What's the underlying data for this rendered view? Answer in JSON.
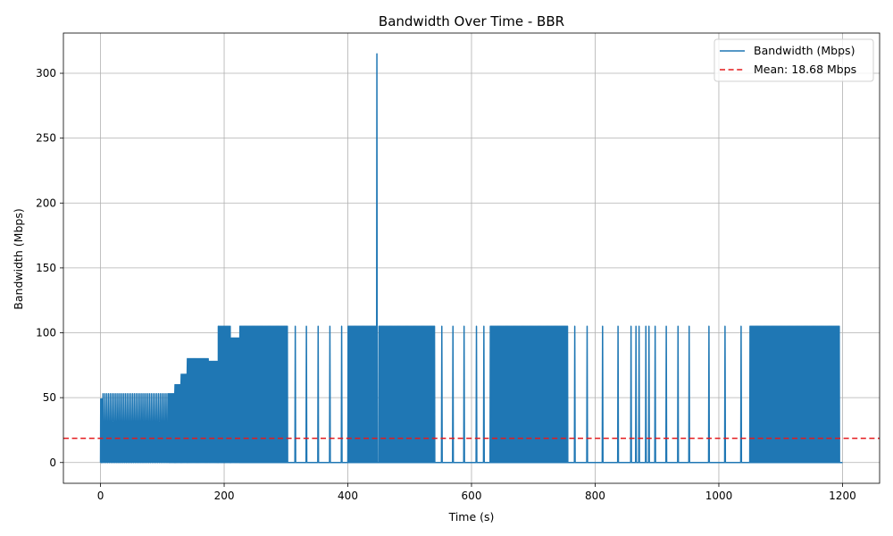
{
  "chart_data": {
    "type": "line",
    "title": "Bandwidth Over Time - BBR",
    "xlabel": "Time (s)",
    "ylabel": "Bandwidth (Mbps)",
    "xlim": [
      -60,
      1260
    ],
    "ylim": [
      -16,
      331
    ],
    "xticks": [
      0,
      200,
      400,
      600,
      800,
      1000,
      1200
    ],
    "yticks": [
      0,
      50,
      100,
      150,
      200,
      250,
      300
    ],
    "grid": true,
    "legend_position": "upper right",
    "colors": {
      "series": "#1f77b4",
      "mean": "#e41a1c"
    },
    "series": [
      {
        "name": "Bandwidth (Mbps)",
        "style": "solid",
        "note_bursts": "alternating between 0 and the listed level within each time window",
        "bursts": [
          {
            "t0": 0,
            "t1": 3,
            "period": 1,
            "peak": 49
          },
          {
            "t0": 3,
            "t1": 110,
            "period": 3,
            "peak": 53
          },
          {
            "t0": 110,
            "t1": 120,
            "period": 1.6,
            "peak": 53
          },
          {
            "t0": 120,
            "t1": 130,
            "period": 1.6,
            "peak": 60
          },
          {
            "t0": 130,
            "t1": 140,
            "period": 1.6,
            "peak": 68
          },
          {
            "t0": 140,
            "t1": 175,
            "period": 1.6,
            "peak": 80
          },
          {
            "t0": 175,
            "t1": 190,
            "period": 1.6,
            "peak": 78
          },
          {
            "t0": 190,
            "t1": 210,
            "period": 1.6,
            "peak": 105
          },
          {
            "t0": 210,
            "t1": 225,
            "period": 1.6,
            "peak": 96
          },
          {
            "t0": 225,
            "t1": 303,
            "period": 1.3,
            "peak": 105
          },
          {
            "t0": 400,
            "t1": 445,
            "period": 1.3,
            "peak": 105
          },
          {
            "t0": 450,
            "t1": 540,
            "period": 1.3,
            "peak": 105
          },
          {
            "t0": 630,
            "t1": 755,
            "period": 1.3,
            "peak": 105
          },
          {
            "t0": 1050,
            "t1": 1195,
            "period": 1.3,
            "peak": 105
          }
        ],
        "spikes": [
          {
            "t": 447,
            "value": 315
          },
          {
            "t": 315,
            "value": 105
          },
          {
            "t": 333,
            "value": 105
          },
          {
            "t": 352,
            "value": 105
          },
          {
            "t": 371,
            "value": 105
          },
          {
            "t": 390,
            "value": 105
          },
          {
            "t": 552,
            "value": 105
          },
          {
            "t": 570,
            "value": 105
          },
          {
            "t": 588,
            "value": 105
          },
          {
            "t": 608,
            "value": 105
          },
          {
            "t": 620,
            "value": 105
          },
          {
            "t": 767,
            "value": 105
          },
          {
            "t": 787,
            "value": 105
          },
          {
            "t": 812,
            "value": 105
          },
          {
            "t": 837,
            "value": 105
          },
          {
            "t": 858,
            "value": 105
          },
          {
            "t": 866,
            "value": 105
          },
          {
            "t": 871,
            "value": 105
          },
          {
            "t": 882,
            "value": 105
          },
          {
            "t": 887,
            "value": 105
          },
          {
            "t": 897,
            "value": 105
          },
          {
            "t": 915,
            "value": 105
          },
          {
            "t": 934,
            "value": 105
          },
          {
            "t": 952,
            "value": 105
          },
          {
            "t": 984,
            "value": 105
          },
          {
            "t": 1010,
            "value": 105
          },
          {
            "t": 1036,
            "value": 105
          }
        ],
        "t_end": 1200
      },
      {
        "name": "Mean: 18.68 Mbps",
        "style": "dashed",
        "value": 18.68
      }
    ]
  }
}
